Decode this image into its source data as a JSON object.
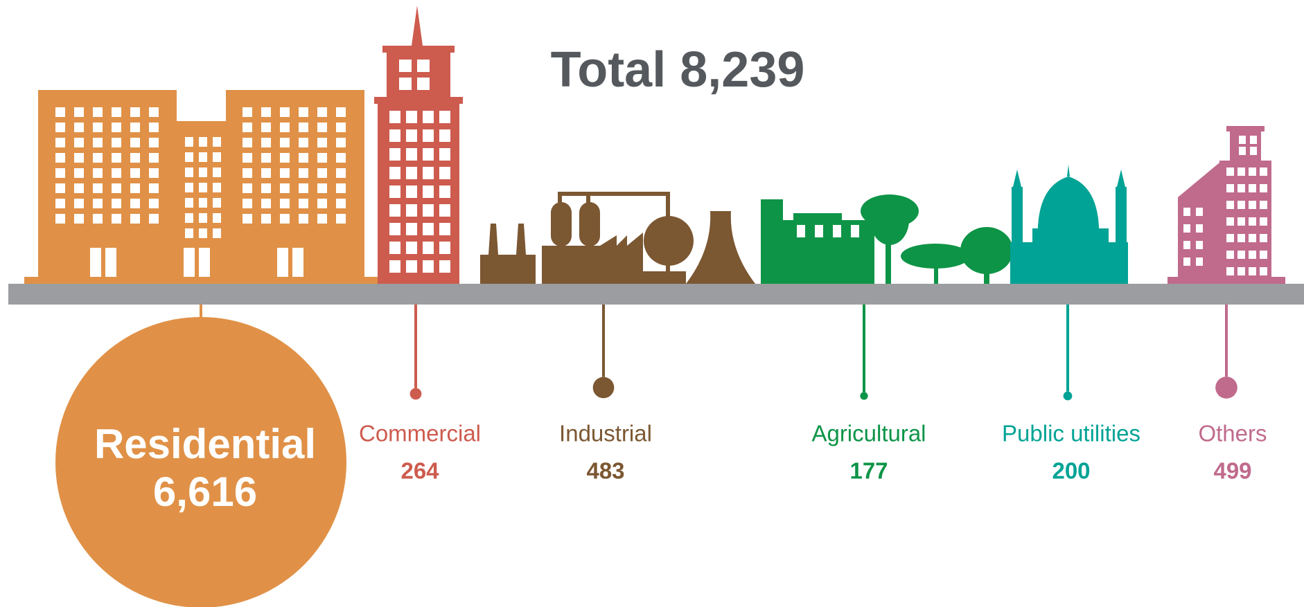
{
  "chart_data": {
    "type": "bubble",
    "title": "Total 8,239",
    "categories": [
      "Residential",
      "Commercial",
      "Industrial",
      "Agricultural",
      "Public utilities",
      "Others"
    ],
    "values": [
      6616,
      264,
      483,
      177,
      200,
      499
    ],
    "value_labels": [
      "6,616",
      "264",
      "483",
      "177",
      "200",
      "499"
    ],
    "colors": [
      "#e09147",
      "#cd5b4e",
      "#7b5732",
      "#0e9447",
      "#00a395",
      "#c06a8c"
    ]
  }
}
